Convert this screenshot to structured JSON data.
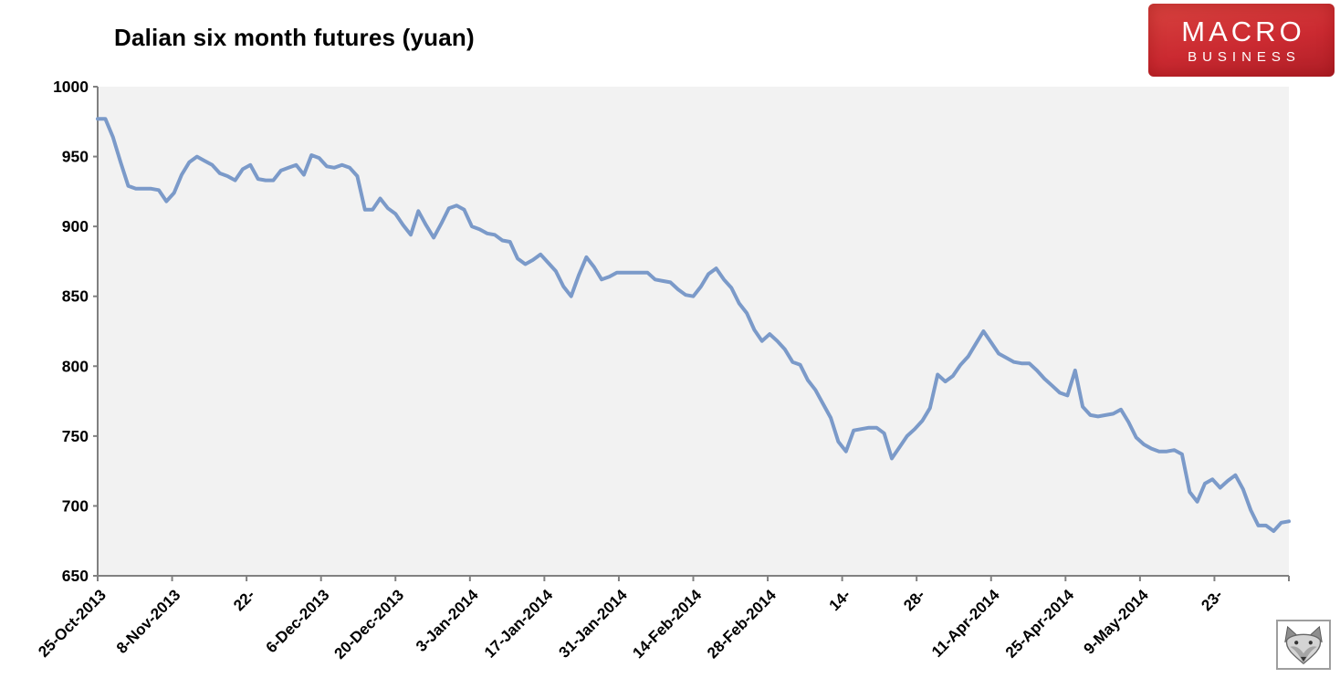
{
  "header": {
    "title": "Dalian six month futures (yuan)",
    "brand": {
      "line1": "MACRO",
      "line2": "BUSINESS",
      "bg_color": "#c9272f",
      "text_color": "#ffffff"
    }
  },
  "chart_data": {
    "type": "line",
    "title": "Dalian six month futures (yuan)",
    "xlabel": "",
    "ylabel": "",
    "ylim": [
      650,
      1000
    ],
    "y_ticks": [
      1000,
      950,
      900,
      850,
      800,
      750,
      700,
      650
    ],
    "x_tick_labels": [
      "25-Oct-2013",
      "8-Nov-2013",
      "22-",
      "6-Dec-2013",
      "20-Dec-2013",
      "3-Jan-2014",
      "17-Jan-2014",
      "31-Jan-2014",
      "14-Feb-2014",
      "28-Feb-2014",
      "14-",
      "28-",
      "11-Apr-2014",
      "25-Apr-2014",
      "9-May-2014",
      "23-"
    ],
    "grid": "off",
    "legend": "none",
    "plot_bg": "#f2f2f2",
    "axis_color": "#808080",
    "series": [
      {
        "name": "Dalian six month futures (yuan)",
        "color": "#7b9ac9",
        "values": [
          977,
          977,
          964,
          946,
          929,
          927,
          927,
          927,
          926,
          918,
          924,
          937,
          946,
          950,
          947,
          944,
          938,
          936,
          933,
          941,
          944,
          934,
          933,
          933,
          940,
          942,
          944,
          937,
          951,
          949,
          943,
          942,
          944,
          942,
          936,
          912,
          912,
          920,
          913,
          909,
          901,
          894,
          911,
          901,
          892,
          902,
          913,
          915,
          912,
          900,
          898,
          895,
          894,
          890,
          889,
          877,
          873,
          876,
          880,
          874,
          868,
          857,
          850,
          865,
          878,
          871,
          862,
          864,
          867,
          867,
          867,
          867,
          867,
          862,
          861,
          860,
          855,
          851,
          850,
          857,
          866,
          870,
          862,
          856,
          845,
          838,
          826,
          818,
          823,
          818,
          812,
          803,
          801,
          790,
          783,
          773,
          763,
          746,
          739,
          754,
          755,
          756,
          756,
          752,
          734,
          742,
          750,
          755,
          761,
          770,
          794,
          789,
          793,
          801,
          807,
          816,
          825,
          817,
          809,
          806,
          803,
          802,
          802,
          797,
          791,
          786,
          781,
          779,
          797,
          771,
          765,
          764,
          765,
          766,
          769,
          760,
          749,
          744,
          741,
          739,
          739,
          740,
          737,
          710,
          703,
          716,
          719,
          713,
          718,
          722,
          712,
          697,
          686,
          686,
          682,
          688,
          689
        ]
      }
    ]
  }
}
